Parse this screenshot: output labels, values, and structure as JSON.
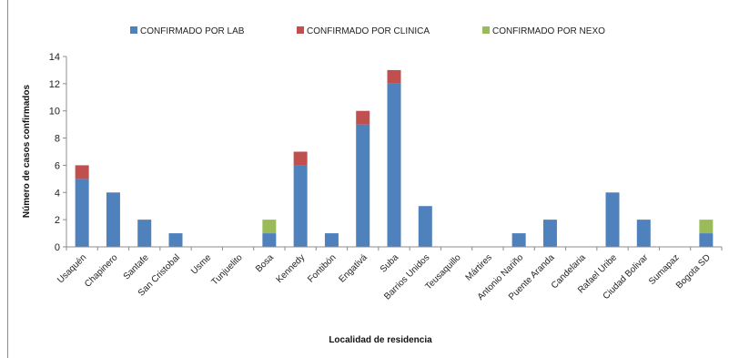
{
  "chart_data": {
    "type": "bar",
    "stacked": true,
    "xlabel": "Localidad de residencia",
    "ylabel": "Número de casos confirmados",
    "ylim": [
      0,
      14
    ],
    "yticks": [
      "0",
      "2",
      "4",
      "6",
      "8",
      "10",
      "12",
      "14"
    ],
    "grid": false,
    "legend_position": "top",
    "categories": [
      "Usaquén",
      "Chapinero",
      "Santafe",
      "San Cristobal",
      "Usme",
      "Tunjuelito",
      "Bosa",
      "Kennedy",
      "Fontibón",
      "Engativá",
      "Suba",
      "Barrios Unidos",
      "Teusaquillo",
      "Mártires",
      "Antonio Nariño",
      "Puente Aranda",
      "Candelaria",
      "Rafael Uribe",
      "Ciudad Bolivar",
      "Sumapaz",
      "Bogota SD"
    ],
    "series": [
      {
        "name": "CONFIRMADO POR LAB",
        "color": "#4f81bd",
        "values": [
          5,
          4,
          2,
          1,
          0,
          0,
          1,
          6,
          1,
          9,
          12,
          3,
          0,
          0,
          1,
          2,
          0,
          4,
          2,
          0,
          1
        ]
      },
      {
        "name": "CONFIRMADO POR CLINICA",
        "color": "#c0504d",
        "values": [
          1,
          0,
          0,
          0,
          0,
          0,
          0,
          1,
          0,
          1,
          1,
          0,
          0,
          0,
          0,
          0,
          0,
          0,
          0,
          0,
          0
        ]
      },
      {
        "name": "CONFIRMADO POR NEXO",
        "color": "#9bbb59",
        "values": [
          0,
          0,
          0,
          0,
          0,
          0,
          1,
          0,
          0,
          0,
          0,
          0,
          0,
          0,
          0,
          0,
          0,
          0,
          0,
          0,
          1
        ]
      }
    ]
  }
}
